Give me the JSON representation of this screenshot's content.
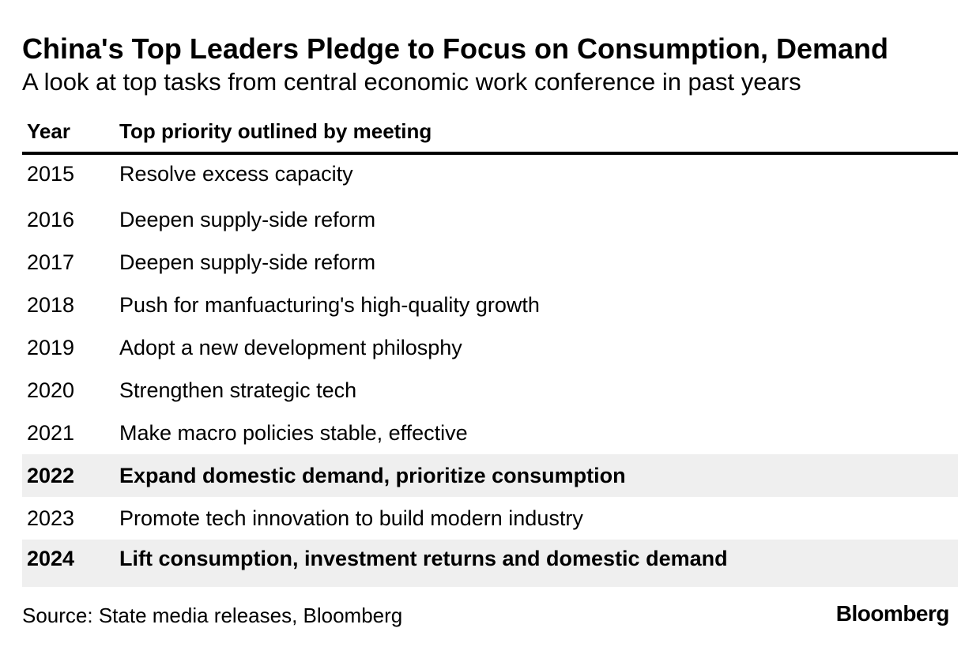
{
  "title": "China's Top Leaders Pledge to Focus on Consumption, Demand",
  "subtitle": "A look at top tasks from central economic work conference in past years",
  "chart_data": {
    "type": "table",
    "columns": [
      "Year",
      "Top priority outlined by meeting"
    ],
    "rows": [
      {
        "year": "2015",
        "priority": "Resolve excess capacity",
        "highlighted": false
      },
      {
        "year": "2016",
        "priority": "Deepen supply-side reform",
        "highlighted": false
      },
      {
        "year": "2017",
        "priority": "Deepen supply-side reform",
        "highlighted": false
      },
      {
        "year": "2018",
        "priority": "Push for manfuacturing's high-quality growth",
        "highlighted": false
      },
      {
        "year": "2019",
        "priority": "Adopt a new development philosphy",
        "highlighted": false
      },
      {
        "year": "2020",
        "priority": "Strengthen strategic tech",
        "highlighted": false
      },
      {
        "year": "2021",
        "priority": "Make macro policies stable, effective",
        "highlighted": false
      },
      {
        "year": "2022",
        "priority": "Expand domestic demand, prioritize consumption",
        "highlighted": true
      },
      {
        "year": "2023",
        "priority": "Promote tech innovation to build modern industry",
        "highlighted": false
      },
      {
        "year": "2024",
        "priority": "Lift consumption, investment returns and domestic demand",
        "highlighted": true
      }
    ],
    "highlight_color": "#efefef"
  },
  "source": "Source: State media releases, Bloomberg",
  "logo_text": "Bloomberg"
}
